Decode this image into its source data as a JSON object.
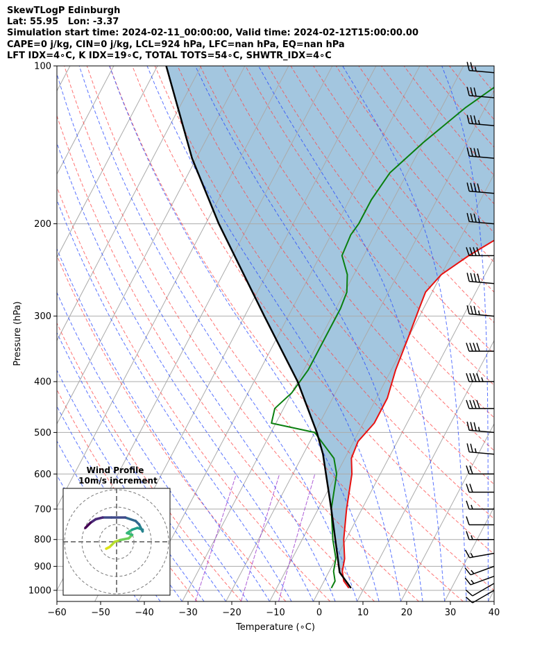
{
  "header": {
    "line1": "SkewTLogP Edinburgh",
    "line2": "Lat: 55.95   Lon: -3.37",
    "line3": "Simulation start time: 2024-02-11_00:00:00, Valid time: 2024-02-12T15:00:00.00",
    "line4": "CAPE=0 j/kg, CIN=0 j/kg, LCL=924 hPa, LFC=nan hPa, EQ=nan hPa",
    "line5": "LFT IDX=4∘C, K IDX=19∘C, TOTAL TOTS=54∘C, SHWTR_IDX=4∘C"
  },
  "chart_data": {
    "type": "skewt",
    "xlabel": "Temperature (∘C)",
    "ylabel": "Pressure (hPa)",
    "xlim": [
      -60,
      40
    ],
    "ylim": [
      1050,
      100
    ],
    "x_ticks": [
      "−60",
      "−50",
      "−40",
      "−30",
      "−20",
      "−10",
      "0",
      "10",
      "20",
      "30",
      "40"
    ],
    "x_tick_values": [
      -60,
      -50,
      -40,
      -30,
      -20,
      -10,
      0,
      10,
      20,
      30,
      40
    ],
    "y_ticks": [
      "1000",
      "900",
      "800",
      "700",
      "600",
      "500",
      "400",
      "300",
      "200",
      "100"
    ],
    "y_tick_values": [
      1000,
      900,
      800,
      700,
      600,
      500,
      400,
      300,
      200,
      100
    ],
    "skew_deg_per_decade": 63,
    "temperature": {
      "name": "Temperature",
      "color": "#e8110f",
      "p": [
        990,
        960,
        920,
        870,
        800,
        700,
        600,
        560,
        520,
        480,
        430,
        380,
        330,
        290,
        270,
        250,
        230,
        215,
        200,
        180,
        160,
        140,
        120,
        100
      ],
      "t": [
        6.5,
        4.5,
        3.0,
        2.0,
        -0.5,
        -3.5,
        -6.5,
        -8.5,
        -9.0,
        -7.5,
        -7.5,
        -9.0,
        -10.0,
        -11.0,
        -11.5,
        -10.0,
        -6.0,
        -2.0,
        -1.5,
        -1.0,
        0.0,
        0.5,
        1.5,
        2.0
      ]
    },
    "dewpoint": {
      "name": "Dew point",
      "color": "#0a7f0f",
      "p": [
        990,
        960,
        920,
        870,
        800,
        700,
        600,
        560,
        500,
        480,
        450,
        420,
        380,
        330,
        290,
        270,
        250,
        230,
        210,
        200,
        180,
        160,
        140,
        120,
        100
      ],
      "t": [
        2.5,
        2.5,
        1.0,
        0.0,
        -3.0,
        -7.0,
        -10.0,
        -12.5,
        -20.0,
        -31.0,
        -32.0,
        -30.0,
        -29.0,
        -29.0,
        -29.0,
        -29.5,
        -31.5,
        -35.0,
        -35.5,
        -35.0,
        -35.0,
        -34.0,
        -30.0,
        -24.5,
        -16.0
      ]
    },
    "parcel": {
      "name": "Parcel",
      "color": "#000000",
      "p": [
        990,
        924,
        700,
        550,
        500,
        400,
        300,
        200,
        150,
        100
      ],
      "t": [
        7.0,
        2.5,
        -7.0,
        -15.5,
        -19.5,
        -30.0,
        -45.5,
        -67.0,
        -81.0,
        -98.0
      ]
    },
    "cape_cin_fill_color": "#a3c6df",
    "dry_adiabats_color": "#ff4444",
    "moist_adiabats_color": "#2244ff",
    "mixing_ratio_color": "#9933cc",
    "isotherm_color": "#aaaaaa",
    "wind_barbs": {
      "p": [
        1000,
        970,
        940,
        900,
        850,
        800,
        750,
        700,
        650,
        600,
        550,
        500,
        450,
        400,
        350,
        300,
        260,
        230,
        200,
        175,
        150,
        130,
        115,
        103
      ],
      "speed_kt": [
        10,
        12,
        13,
        15,
        15,
        15,
        12,
        15,
        20,
        20,
        25,
        35,
        40,
        45,
        40,
        35,
        40,
        40,
        35,
        40,
        40,
        35,
        30,
        25
      ],
      "direction_deg": [
        240,
        240,
        250,
        250,
        260,
        270,
        270,
        270,
        270,
        270,
        275,
        275,
        270,
        270,
        270,
        275,
        275,
        270,
        275,
        275,
        275,
        275,
        275,
        275
      ]
    },
    "hodograph": {
      "title": "Wind Profile",
      "subtitle": "10m/s increment",
      "rings_ms": [
        10,
        20,
        30
      ],
      "u": [
        -6,
        -4,
        -3,
        -1,
        2,
        7,
        9,
        6,
        9,
        12,
        15,
        15,
        13,
        11,
        5,
        -3,
        -8,
        -12,
        -15,
        -18
      ],
      "v": [
        -4,
        -3,
        -2,
        0,
        1,
        2,
        4,
        5,
        7,
        8,
        7,
        6,
        10,
        12,
        14,
        14,
        14,
        13,
        11,
        8
      ],
      "colors": [
        "#dde318",
        "#b5de2b",
        "#6ece58",
        "#35b779",
        "#1f9e89",
        "#26828e",
        "#31688e",
        "#3e4989",
        "#482878",
        "#440154"
      ]
    }
  }
}
